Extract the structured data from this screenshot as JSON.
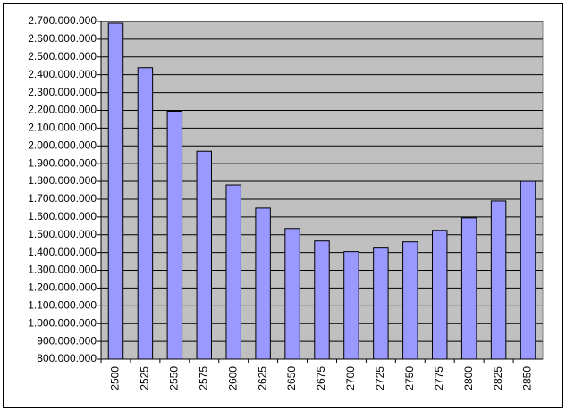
{
  "chart_data": {
    "type": "bar",
    "categories": [
      "2500",
      "2525",
      "2550",
      "2575",
      "2600",
      "2625",
      "2650",
      "2675",
      "2700",
      "2725",
      "2750",
      "2775",
      "2800",
      "2825",
      "2850"
    ],
    "values": [
      2690000000,
      2440000000,
      2195000000,
      1970000000,
      1780000000,
      1650000000,
      1535000000,
      1465000000,
      1405000000,
      1425000000,
      1460000000,
      1525000000,
      1595000000,
      1690000000,
      1800000000
    ],
    "color": "#9999ff",
    "ylim": [
      800000000,
      2700000000
    ],
    "yticks": [
      {
        "value": 800000000,
        "label": "800.000.000"
      },
      {
        "value": 900000000,
        "label": "900.000.000"
      },
      {
        "value": 1000000000,
        "label": "1.000.000.000"
      },
      {
        "value": 1100000000,
        "label": "1.100.000.000"
      },
      {
        "value": 1200000000,
        "label": "1.200.000.000"
      },
      {
        "value": 1300000000,
        "label": "1.300.000.000"
      },
      {
        "value": 1400000000,
        "label": "1.400.000.000"
      },
      {
        "value": 1500000000,
        "label": "1.500.000.000"
      },
      {
        "value": 1600000000,
        "label": "1.600.000.000"
      },
      {
        "value": 1700000000,
        "label": "1.700.000.000"
      },
      {
        "value": 1800000000,
        "label": "1.800.000.000"
      },
      {
        "value": 1900000000,
        "label": "1.900.000.000"
      },
      {
        "value": 2000000000,
        "label": "2.000.000.000"
      },
      {
        "value": 2100000000,
        "label": "2.100.000.000"
      },
      {
        "value": 2200000000,
        "label": "2.200.000.000"
      },
      {
        "value": 2300000000,
        "label": "2.300.000.000"
      },
      {
        "value": 2400000000,
        "label": "2.400.000.000"
      },
      {
        "value": 2500000000,
        "label": "2.500.000.000"
      },
      {
        "value": 2600000000,
        "label": "2.600.000.000"
      },
      {
        "value": 2700000000,
        "label": "2.700.000.000"
      }
    ],
    "grid": true,
    "plot_background": "#c0c0c0"
  }
}
